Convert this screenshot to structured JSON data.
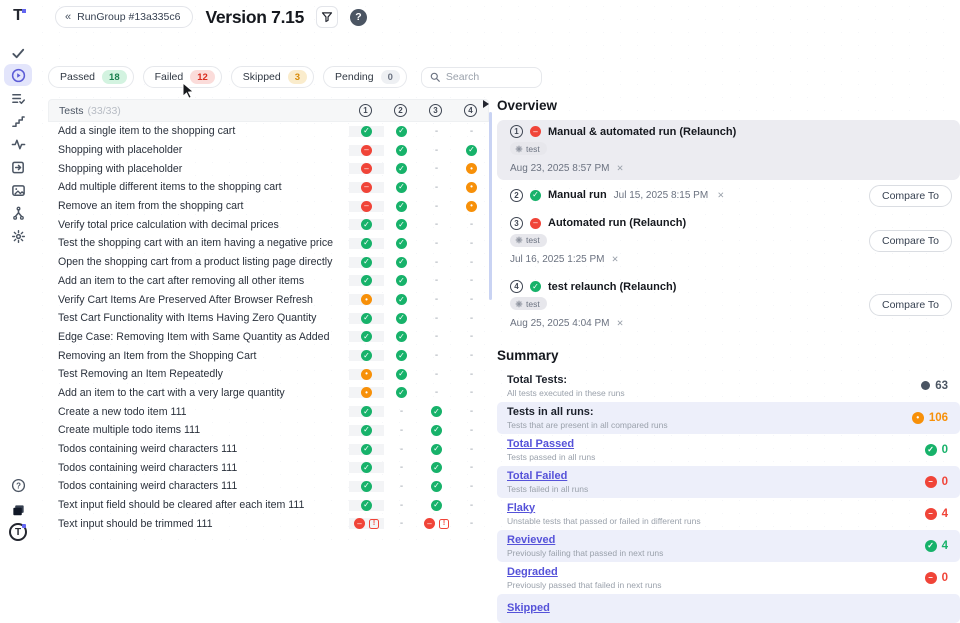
{
  "colors": {
    "accent": "#6366f1",
    "passed": "#17b26a",
    "failed": "#f04438",
    "skipped": "#f79009",
    "link": "#5552d9"
  },
  "sidebar": {
    "top_items": [
      {
        "name": "checks"
      },
      {
        "name": "runs",
        "active": true
      },
      {
        "name": "test-list"
      },
      {
        "name": "steps"
      },
      {
        "name": "activity"
      },
      {
        "name": "import-run"
      },
      {
        "name": "screenshots"
      },
      {
        "name": "branches"
      },
      {
        "name": "settings"
      }
    ],
    "bottom_items": [
      {
        "name": "help"
      },
      {
        "name": "docs"
      }
    ]
  },
  "topbar": {
    "back_chevron": "«",
    "rungroup_label": "RunGroup #13a335c6",
    "title": "Version 7.15"
  },
  "filters": [
    {
      "label": "Passed",
      "count": "18",
      "color": "green"
    },
    {
      "label": "Failed",
      "count": "12",
      "color": "red"
    },
    {
      "label": "Skipped",
      "count": "3",
      "color": "amber"
    },
    {
      "label": "Pending",
      "count": "0",
      "color": "gray"
    }
  ],
  "search": {
    "placeholder": "Search"
  },
  "table": {
    "title": "Tests",
    "count": "(33/33)",
    "columns": [
      "1",
      "2",
      "3",
      "4"
    ],
    "rows": [
      {
        "name": "Add a single item to the shopping cart",
        "statuses": [
          "p",
          "p",
          "-",
          "-"
        ]
      },
      {
        "name": "Shopping with placeholder",
        "statuses": [
          "f",
          "p",
          "-",
          "p"
        ]
      },
      {
        "name": "Shopping with placeholder",
        "statuses": [
          "f",
          "p",
          "-",
          "s"
        ]
      },
      {
        "name": "Add multiple different items to the shopping cart",
        "statuses": [
          "f",
          "p",
          "-",
          "s"
        ]
      },
      {
        "name": "Remove an item from the shopping cart",
        "statuses": [
          "f",
          "p",
          "-",
          "s"
        ]
      },
      {
        "name": "Verify total price calculation with decimal prices",
        "statuses": [
          "p",
          "p",
          "-",
          "-"
        ]
      },
      {
        "name": "Test the shopping cart with an item having a negative price",
        "statuses": [
          "p",
          "p",
          "-",
          "-"
        ]
      },
      {
        "name": "Open the shopping cart from a product listing page directly",
        "statuses": [
          "p",
          "p",
          "-",
          "-"
        ]
      },
      {
        "name": "Add an item to the cart after removing all other items",
        "statuses": [
          "p",
          "p",
          "-",
          "-"
        ]
      },
      {
        "name": "Verify Cart Items Are Preserved After Browser Refresh",
        "statuses": [
          "s",
          "p",
          "-",
          "-"
        ]
      },
      {
        "name": "Test Cart Functionality with Items Having Zero Quantity",
        "statuses": [
          "p",
          "p",
          "-",
          "-"
        ]
      },
      {
        "name": "Edge Case: Removing Item with Same Quantity as Added",
        "statuses": [
          "p",
          "p",
          "-",
          "-"
        ]
      },
      {
        "name": "Removing an Item from the Shopping Cart",
        "statuses": [
          "p",
          "p",
          "-",
          "-"
        ]
      },
      {
        "name": "Test Removing an Item Repeatedly",
        "statuses": [
          "s",
          "p",
          "-",
          "-"
        ]
      },
      {
        "name": "Add an item to the cart with a very large quantity",
        "statuses": [
          "s",
          "p",
          "-",
          "-"
        ]
      },
      {
        "name": "Create a new todo item 111",
        "statuses": [
          "p",
          "-",
          "p",
          "-"
        ]
      },
      {
        "name": "Create multiple todo items 111",
        "statuses": [
          "p",
          "-",
          "p",
          "-"
        ]
      },
      {
        "name": "Todos containing weird characters 111",
        "statuses": [
          "p",
          "-",
          "p",
          "-"
        ]
      },
      {
        "name": "Todos containing weird characters 111",
        "statuses": [
          "p",
          "-",
          "p",
          "-"
        ]
      },
      {
        "name": "Todos containing weird characters 111",
        "statuses": [
          "p",
          "-",
          "p",
          "-"
        ]
      },
      {
        "name": "Text input field should be cleared after each item 111",
        "statuses": [
          "p",
          "-",
          "p",
          "-"
        ]
      },
      {
        "name": "Text input should be trimmed 111",
        "statuses": [
          "fc",
          "-",
          "fc",
          "-"
        ]
      }
    ]
  },
  "overview": {
    "heading": "Overview",
    "compare_label": "Compare To",
    "close_glyph": "✕",
    "runs": [
      {
        "num": "1",
        "status": "failed",
        "title": "Manual & automated run (Relaunch)",
        "tag": "test",
        "date": "Aug 23, 2025 8:57 PM",
        "compare": false,
        "highlighted": true,
        "inline_date": false
      },
      {
        "num": "2",
        "status": "passed",
        "title": "Manual run",
        "tag": null,
        "date": "Jul 15, 2025 8:15 PM",
        "compare": true,
        "highlighted": false,
        "inline_date": true
      },
      {
        "num": "3",
        "status": "failed",
        "title": "Automated run (Relaunch)",
        "tag": "test",
        "date": "Jul 16, 2025 1:25 PM",
        "compare": true,
        "highlighted": false,
        "inline_date": false
      },
      {
        "num": "4",
        "status": "passed",
        "title": "test relaunch (Relaunch)",
        "tag": "test",
        "date": "Aug 25, 2025 4:04 PM",
        "compare": true,
        "highlighted": false,
        "inline_date": false
      }
    ]
  },
  "summary": {
    "heading": "Summary",
    "items": [
      {
        "title": "Total Tests:",
        "desc": "All tests executed in these runs",
        "value": "63",
        "icon": "total",
        "link": false,
        "shaded": false
      },
      {
        "title": "Tests in all runs:",
        "desc": "Tests that are present in all compared runs",
        "value": "106",
        "icon": "skipped",
        "link": false,
        "shaded": true
      },
      {
        "title": "Total Passed",
        "desc": "Tests passed in all runs",
        "value": "0",
        "icon": "passed",
        "link": true,
        "shaded": false
      },
      {
        "title": "Total Failed",
        "desc": "Tests failed in all runs",
        "value": "0",
        "icon": "failed",
        "link": true,
        "shaded": true
      },
      {
        "title": "Flaky",
        "desc": "Unstable tests that passed or failed in different runs",
        "value": "4",
        "icon": "failed",
        "link": true,
        "shaded": false
      },
      {
        "title": "Revieved",
        "desc": "Previously failing that passed in next runs",
        "value": "4",
        "icon": "passed",
        "link": true,
        "shaded": true
      },
      {
        "title": "Degraded",
        "desc": "Previously passed that failed in next runs",
        "value": "0",
        "icon": "failed",
        "link": true,
        "shaded": false
      },
      {
        "title": "Skipped",
        "desc": "",
        "value": "",
        "icon": "none",
        "link": true,
        "shaded": true
      }
    ]
  }
}
